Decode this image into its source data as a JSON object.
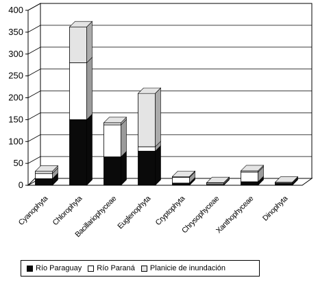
{
  "chart_data": {
    "type": "bar",
    "stacked": true,
    "three_d": true,
    "categories": [
      "Cyanophyta",
      "Chlorophyta",
      "Bacillariophyceae",
      "Euglenophyta",
      "Cryptophyta",
      "Chrysophyceae",
      "Xanthophyceae",
      "Dinophyta"
    ],
    "series": [
      {
        "name": "Río Paraguay",
        "values": [
          15,
          150,
          65,
          78,
          5,
          2,
          8,
          4
        ]
      },
      {
        "name": "Río Paraná",
        "values": [
          12,
          130,
          73,
          10,
          13,
          3,
          22,
          2
        ]
      },
      {
        "name": "Planicie de inundación",
        "values": [
          5,
          82,
          5,
          122,
          2,
          1,
          3,
          1
        ]
      }
    ],
    "colors": [
      "#0a0a0a",
      "#ffffff",
      "#e4e4e4"
    ],
    "yticks": [
      "0",
      "50",
      "100",
      "150",
      "200",
      "250",
      "300",
      "350",
      "400"
    ],
    "ylim": [
      0,
      400
    ],
    "grid": true,
    "legend_position": "bottom"
  }
}
